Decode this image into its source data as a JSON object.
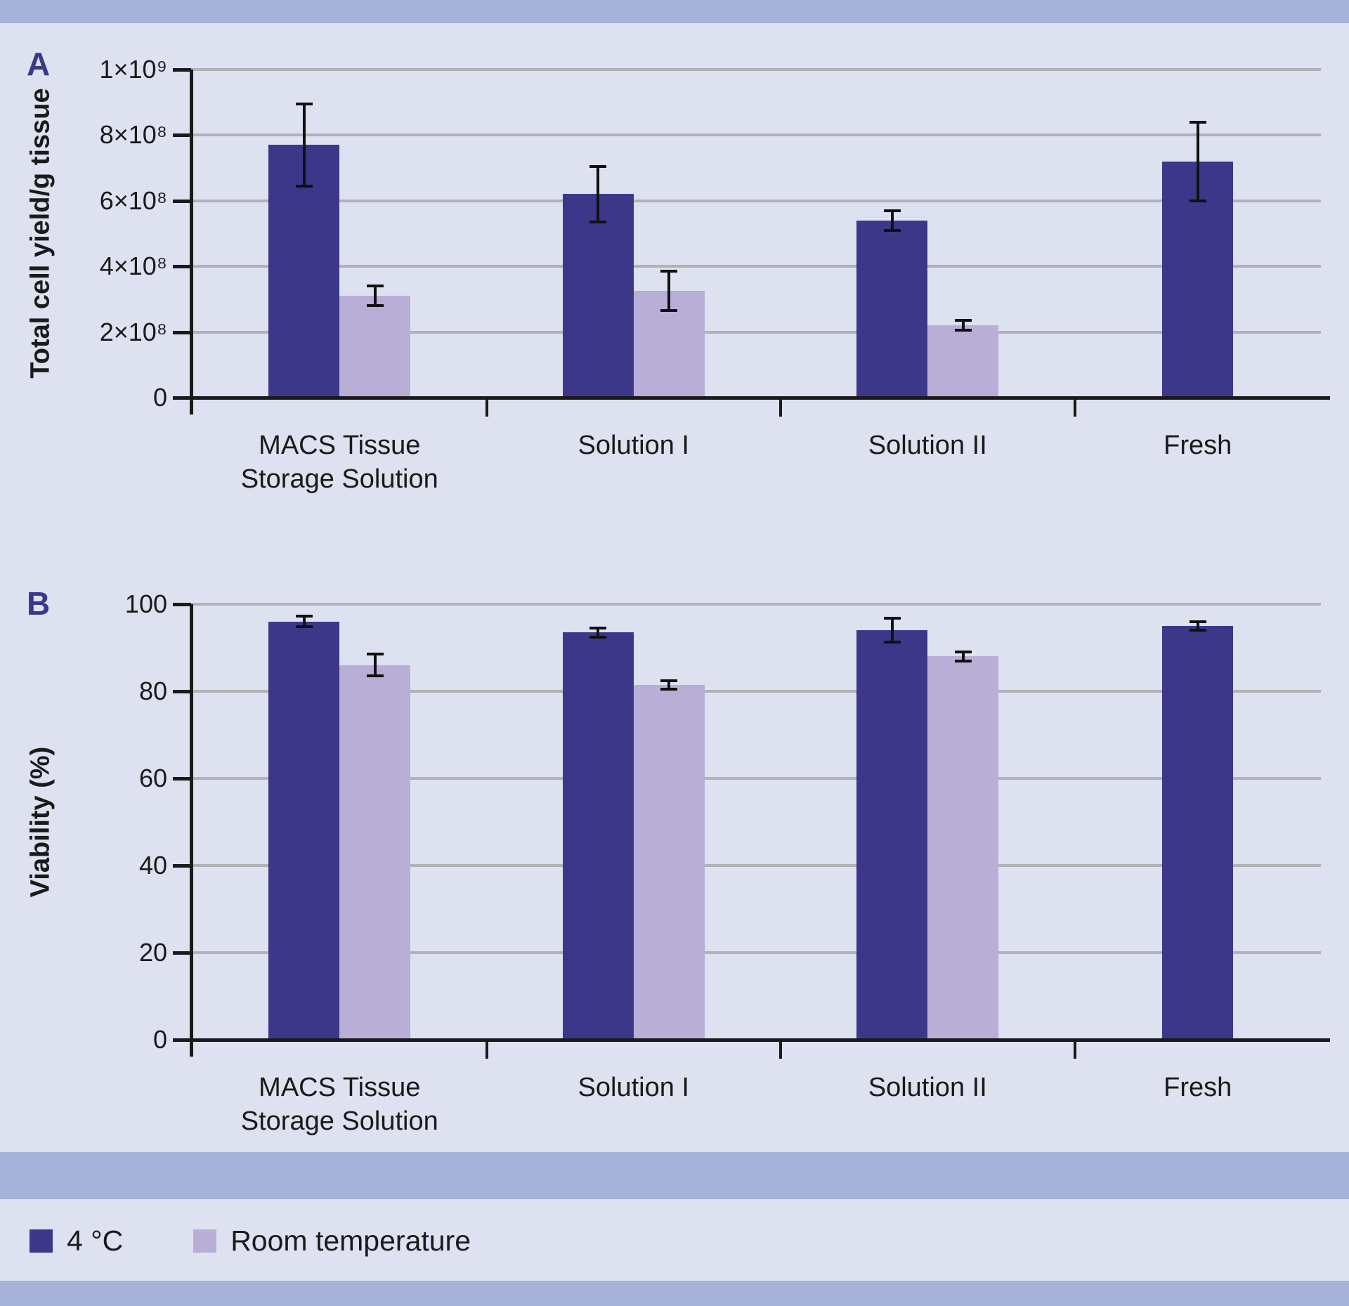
{
  "figure": {
    "panels": [
      {
        "label": "A"
      },
      {
        "label": "B"
      }
    ]
  },
  "legend": {
    "items": [
      {
        "label": "4 °C",
        "color": "#3d3789"
      },
      {
        "label": "Room temperature",
        "color": "#b9aed6"
      }
    ]
  },
  "colors": {
    "background": "#dde1f0",
    "band": "#a6b2da",
    "gridline": "#b2b2b6",
    "axis": "#1a1a1a",
    "bar_dark": "#3d3789",
    "bar_light": "#b9aed6",
    "error_bar": "#111111",
    "panel_label": "#3d3789"
  },
  "chart_data": [
    {
      "id": "A",
      "type": "bar",
      "title": "",
      "xlabel": "",
      "ylabel": "Total cell yield/g tissue",
      "values_unit": "×10⁸",
      "ylim": [
        0,
        10
      ],
      "grid": "horizontal",
      "ytick_values": [
        10,
        8,
        6,
        4,
        2,
        0
      ],
      "ytick_labels": [
        "1×10⁹",
        "8×10⁸",
        "6×10⁸",
        "4×10⁸",
        "2×10⁸",
        "0"
      ],
      "categories": [
        [
          "MACS Tissue",
          "Storage Solution"
        ],
        [
          "Solution I"
        ],
        [
          "Solution II"
        ],
        [
          "Fresh"
        ]
      ],
      "series": [
        {
          "name": "4 °C",
          "color": "#3d3789",
          "values": [
            7.7,
            6.2,
            5.4,
            7.2
          ],
          "errors": [
            1.25,
            0.85,
            0.3,
            1.2
          ]
        },
        {
          "name": "Room temperature",
          "color": "#b9aed6",
          "values": [
            3.1,
            3.25,
            2.2,
            null
          ],
          "errors": [
            0.3,
            0.6,
            0.15,
            null
          ]
        }
      ]
    },
    {
      "id": "B",
      "type": "bar",
      "title": "",
      "xlabel": "",
      "ylabel": "Viability (%)",
      "values_unit": "%",
      "ylim": [
        0,
        100
      ],
      "grid": "horizontal",
      "ytick_values": [
        100,
        80,
        60,
        40,
        20,
        0
      ],
      "ytick_labels": [
        "100",
        "80",
        "60",
        "40",
        "20",
        "0"
      ],
      "categories": [
        [
          "MACS Tissue",
          "Storage Solution"
        ],
        [
          "Solution I"
        ],
        [
          "Solution II"
        ],
        [
          "Fresh"
        ]
      ],
      "series": [
        {
          "name": "4 °C",
          "color": "#3d3789",
          "values": [
            96,
            93.5,
            94,
            95
          ],
          "errors": [
            1.2,
            1.0,
            2.7,
            1.0
          ]
        },
        {
          "name": "Room temperature",
          "color": "#b9aed6",
          "values": [
            86,
            81.5,
            88,
            null
          ],
          "errors": [
            2.5,
            1.0,
            1.0,
            null
          ]
        }
      ]
    }
  ]
}
